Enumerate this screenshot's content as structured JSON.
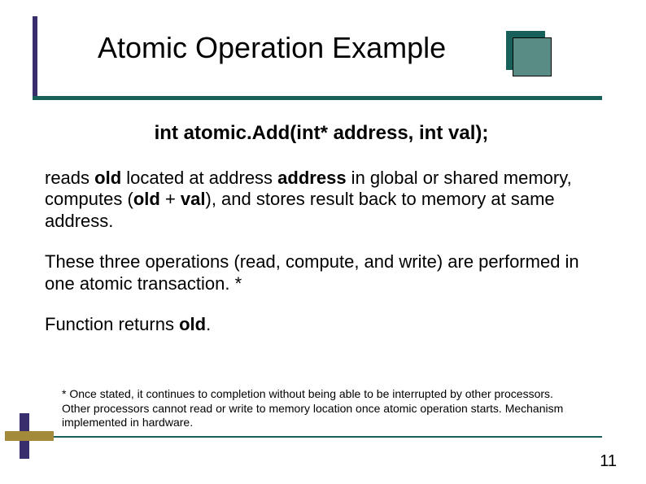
{
  "title": "Atomic Operation Example",
  "signature": {
    "prefix": "int atomic.Add(int* address, int val);"
  },
  "para1": {
    "t1": "reads ",
    "b1": "old",
    "t2": " located at address ",
    "b2": "address",
    "t3": " in global or shared memory, computes (",
    "b3": "old",
    "t4": " + ",
    "b4": "val",
    "t5": "), and stores result back to memory at same address."
  },
  "para2": "These three operations (read, compute, and write) are performed in one atomic transaction. *",
  "para3": {
    "t1": "Function returns ",
    "b1": "old",
    "t2": "."
  },
  "footnote": "* Once stated, it continues to completion without being able to be interrupted by other processors. Other processors cannot read or write to memory location once atomic operation starts.  Mechanism implemented in hardware.",
  "pagenum": "11",
  "colors": {
    "teal": "#18605a",
    "mutedTeal": "#5a8c86",
    "purple": "#3a2d6e",
    "gold": "#a28a3a",
    "bg": "#ffffff",
    "text": "#000000"
  }
}
